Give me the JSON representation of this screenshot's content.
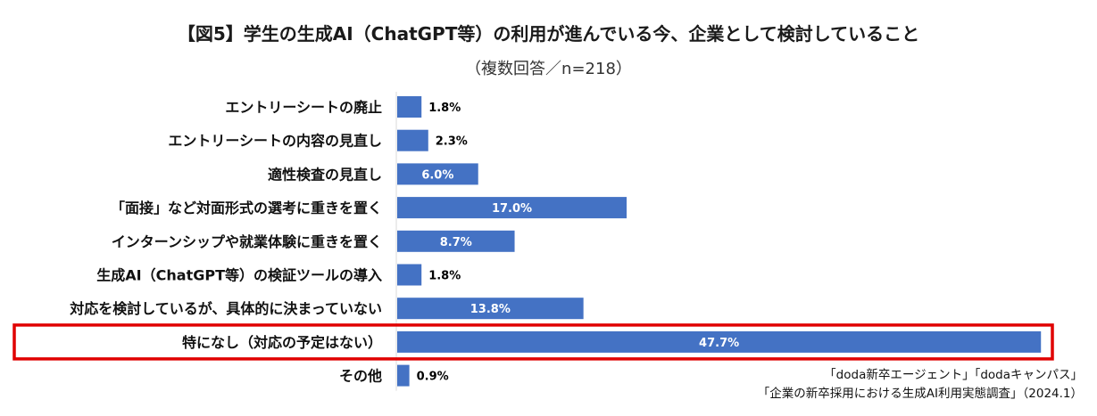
{
  "title": "【図5】学生の生成AI（ChatGPT等）の利用が進んでいる今、企業として検討していること",
  "subtitle": "（複数回答／n=218）",
  "chart_data": {
    "type": "bar",
    "orientation": "horizontal",
    "categories": [
      "エントリーシートの廃止",
      "エントリーシートの内容の見直し",
      "適性検査の見直し",
      "「面接」など対面形式の選考に重きを置く",
      "インターンシップや就業体験に重きを置く",
      "生成AI（ChatGPT等）の検証ツールの導入",
      "対応を検討しているが、具体的に決まっていない",
      "特になし（対応の予定はない）",
      "その他"
    ],
    "values": [
      1.8,
      2.3,
      6.0,
      17.0,
      8.7,
      1.8,
      13.8,
      47.7,
      0.9
    ],
    "value_labels": [
      "1.8%",
      "2.3%",
      "6.0%",
      "17.0%",
      "8.7%",
      "1.8%",
      "13.8%",
      "47.7%",
      "0.9%"
    ],
    "unit": "%",
    "bar_color": "#4472C4",
    "highlight_category": "特になし（対応の予定はない）",
    "highlight_color": "#E00000"
  },
  "source": {
    "line1": "「doda新卒エージェント」「dodaキャンパス」",
    "line2": "「企業の新卒採用における生成AI利用実態調査」（2024.1）"
  }
}
